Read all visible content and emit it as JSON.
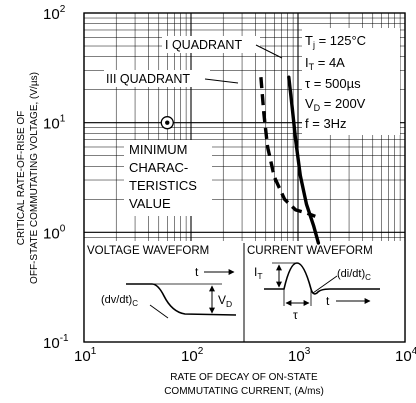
{
  "chart_data": {
    "type": "line",
    "title": "",
    "xlabel_lines": [
      "RATE OF DECAY OF ON-STATE",
      "COMMUTATING CURRENT, (A/ms)"
    ],
    "ylabel_lines": [
      "CRITICAL RATE-OF-RISE OF",
      "OFF-STATE COMMUTATING VOLTAGE, (V/µs)"
    ],
    "xscale": "log",
    "yscale": "log",
    "xlim": [
      10,
      10000
    ],
    "ylim": [
      0.1,
      100
    ],
    "grid": true,
    "x_ticks": [
      {
        "base": "10",
        "exp": "1",
        "value": 10
      },
      {
        "base": "10",
        "exp": "2",
        "value": 100
      },
      {
        "base": "10",
        "exp": "3",
        "value": 1000
      },
      {
        "base": "10",
        "exp": "4",
        "value": 10000
      }
    ],
    "y_ticks": [
      {
        "base": "10",
        "exp": "-1",
        "value": 0.1
      },
      {
        "base": "10",
        "exp": "0",
        "value": 1
      },
      {
        "base": "10",
        "exp": "1",
        "value": 10
      },
      {
        "base": "10",
        "exp": "2",
        "value": 100
      }
    ],
    "series": [
      {
        "name": "I QUADRANT",
        "style": "solid",
        "x": [
          820,
          880,
          950,
          1050,
          1200,
          1400,
          1550
        ],
        "y": [
          26,
          14,
          7,
          3.3,
          1.8,
          1.15,
          0.8
        ]
      },
      {
        "name": "III QUADRANT",
        "style": "dashed",
        "x": [
          450,
          480,
          520,
          600,
          750,
          950,
          1200,
          1450
        ],
        "y": [
          26,
          12,
          6,
          3.2,
          2.0,
          1.6,
          1.5,
          1.4
        ]
      }
    ],
    "min_marker": {
      "x": 60,
      "y": 10
    },
    "min_label_lines": [
      "MINIMUM",
      "CHARAC-",
      "TERISTICS",
      "VALUE"
    ],
    "conditions": [
      {
        "main": "T",
        "sub": "j",
        "rest": " = 125°C"
      },
      {
        "main": "I",
        "sub": "T",
        "rest": " = 4A"
      },
      {
        "main": "τ",
        "sub": "",
        "rest": " = 500µs"
      },
      {
        "main": "V",
        "sub": "D",
        "rest": " = 200V"
      },
      {
        "main": "f",
        "sub": "",
        "rest": " = 3Hz"
      }
    ],
    "voltage_waveform": {
      "title": "VOLTAGE WAVEFORM",
      "time_label": "t",
      "dvdt_main": "(dv/dt)",
      "dvdt_sub": "C",
      "vd_main": "V",
      "vd_sub": "D"
    },
    "current_waveform": {
      "title": "CURRENT WAVEFORM",
      "time_label": "t",
      "it_main": "I",
      "it_sub": "T",
      "didt_main": "(di/dt)",
      "didt_sub": "C",
      "tau_label": "τ"
    }
  }
}
